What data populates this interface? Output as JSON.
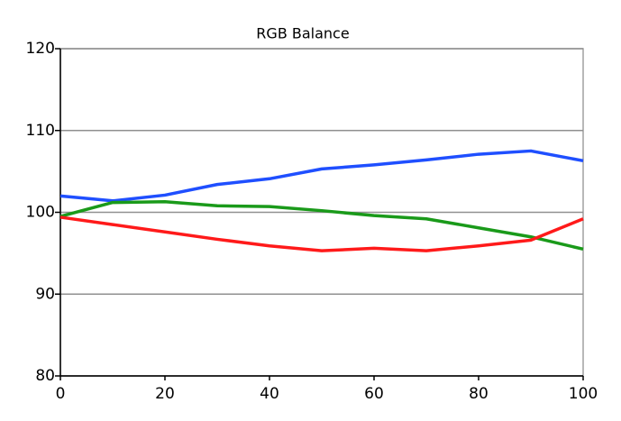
{
  "chart_data": {
    "type": "line",
    "title": "RGB Balance",
    "x": [
      0,
      10,
      20,
      30,
      40,
      50,
      60,
      70,
      80,
      90,
      100
    ],
    "series": [
      {
        "color": "#1f4fff",
        "values": [
          102.0,
          101.4,
          102.1,
          103.4,
          104.1,
          105.3,
          105.8,
          106.4,
          107.1,
          107.5,
          106.3
        ]
      },
      {
        "color": "#1a9a1a",
        "values": [
          99.5,
          101.2,
          101.3,
          100.8,
          100.7,
          100.2,
          99.6,
          99.2,
          98.1,
          97.0,
          95.5
        ]
      },
      {
        "color": "#ff1a1a",
        "values": [
          99.4,
          98.5,
          97.6,
          96.7,
          95.9,
          95.3,
          95.6,
          95.3,
          95.9,
          96.6,
          99.2
        ]
      }
    ],
    "xlim": [
      0,
      100
    ],
    "xticks": [
      0,
      20,
      40,
      60,
      80,
      100
    ],
    "ylim": [
      80,
      120
    ],
    "yticks": [
      80,
      90,
      100,
      110,
      120
    ],
    "grid": true
  }
}
